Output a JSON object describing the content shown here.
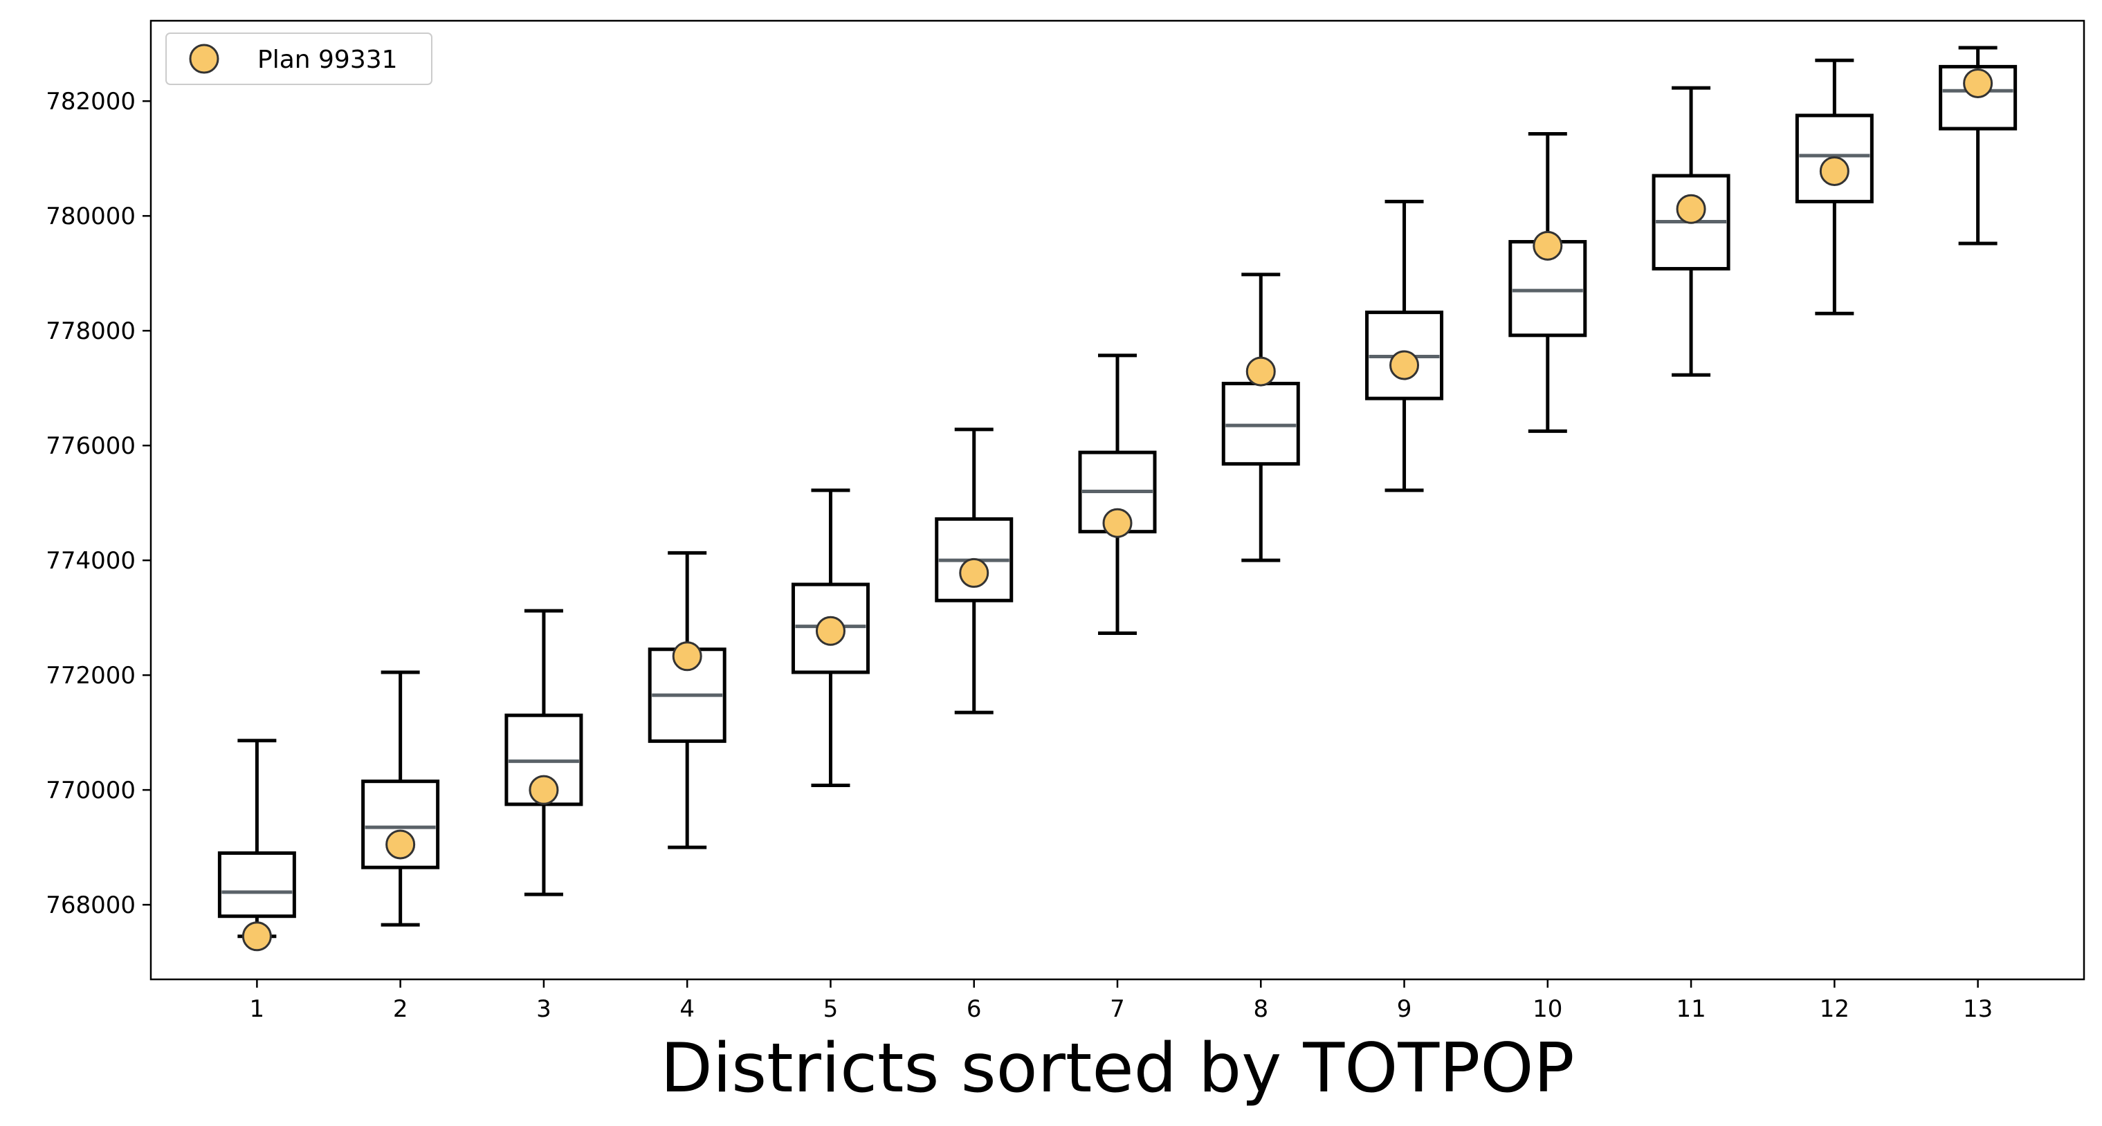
{
  "chart_data": {
    "type": "box",
    "title": "",
    "xlabel": "Districts sorted by TOTPOP",
    "ylabel": "",
    "categories": [
      "1",
      "2",
      "3",
      "4",
      "5",
      "6",
      "7",
      "8",
      "9",
      "10",
      "11",
      "12",
      "13"
    ],
    "ylim": [
      766700,
      783400
    ],
    "yticks": [
      768000,
      770000,
      772000,
      774000,
      776000,
      778000,
      780000,
      782000
    ],
    "grid": false,
    "legend": {
      "position": "top-left",
      "entries": [
        "Plan 99331"
      ]
    },
    "series": [
      {
        "name": "Plan 99331",
        "kind": "scatter",
        "color": "#f9c86a",
        "values": [
          767450,
          769050,
          770000,
          772330,
          772770,
          773780,
          774650,
          777290,
          777400,
          779480,
          780120,
          780780,
          782310
        ]
      }
    ],
    "boxes": [
      {
        "whisker_low": 767450,
        "q1": 767800,
        "median": 768220,
        "q3": 768900,
        "whisker_high": 770860
      },
      {
        "whisker_low": 767650,
        "q1": 768650,
        "median": 769350,
        "q3": 770150,
        "whisker_high": 772050
      },
      {
        "whisker_low": 768180,
        "q1": 769750,
        "median": 770500,
        "q3": 771300,
        "whisker_high": 773120
      },
      {
        "whisker_low": 769000,
        "q1": 770850,
        "median": 771650,
        "q3": 772450,
        "whisker_high": 774130
      },
      {
        "whisker_low": 770080,
        "q1": 772050,
        "median": 772850,
        "q3": 773580,
        "whisker_high": 775220
      },
      {
        "whisker_low": 771350,
        "q1": 773300,
        "median": 774000,
        "q3": 774720,
        "whisker_high": 776280
      },
      {
        "whisker_low": 772730,
        "q1": 774500,
        "median": 775200,
        "q3": 775880,
        "whisker_high": 777570
      },
      {
        "whisker_low": 774000,
        "q1": 775680,
        "median": 776350,
        "q3": 777080,
        "whisker_high": 778980
      },
      {
        "whisker_low": 775220,
        "q1": 776820,
        "median": 777550,
        "q3": 778320,
        "whisker_high": 780250
      },
      {
        "whisker_low": 776250,
        "q1": 777920,
        "median": 778700,
        "q3": 779550,
        "whisker_high": 781430
      },
      {
        "whisker_low": 777230,
        "q1": 779080,
        "median": 779900,
        "q3": 780700,
        "whisker_high": 782230
      },
      {
        "whisker_low": 778300,
        "q1": 780250,
        "median": 781050,
        "q3": 781750,
        "whisker_high": 782710
      },
      {
        "whisker_low": 779520,
        "q1": 781520,
        "median": 782180,
        "q3": 782600,
        "whisker_high": 782930
      }
    ],
    "colors": {
      "box": "#000000",
      "median": "#5a6268",
      "point": "#f9c86a",
      "point_edge": "#333333"
    }
  }
}
